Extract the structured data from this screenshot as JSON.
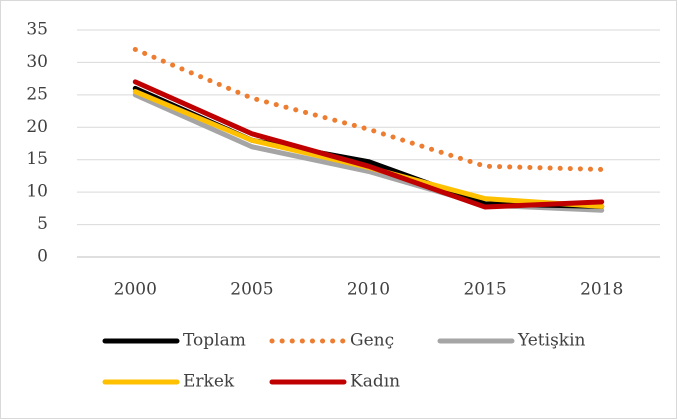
{
  "chart_data": {
    "type": "line",
    "categories": [
      "2000",
      "2005",
      "2010",
      "2015",
      "2018"
    ],
    "series": [
      {
        "name": "Toplam",
        "color": "#000000",
        "style": "solid",
        "values": [
          26,
          18,
          14.7,
          8.2,
          7.8
        ]
      },
      {
        "name": "Genç",
        "color": "#ed7d31",
        "style": "dotted",
        "values": [
          32,
          24.5,
          19.7,
          14,
          13.5
        ]
      },
      {
        "name": "Yetişkin",
        "color": "#a5a5a5",
        "style": "solid",
        "values": [
          25,
          17,
          13.2,
          8,
          7.2
        ]
      },
      {
        "name": "Erkek",
        "color": "#ffc000",
        "style": "solid",
        "values": [
          25.5,
          18,
          13.8,
          9,
          7.8
        ]
      },
      {
        "name": "Kadın",
        "color": "#c00000",
        "style": "solid",
        "values": [
          27,
          19,
          14,
          7.7,
          8.5
        ]
      }
    ],
    "ylim": [
      0,
      35
    ],
    "yticks": [
      0,
      5,
      10,
      15,
      20,
      25,
      30,
      35
    ],
    "grid": true,
    "legend": "bottom"
  }
}
